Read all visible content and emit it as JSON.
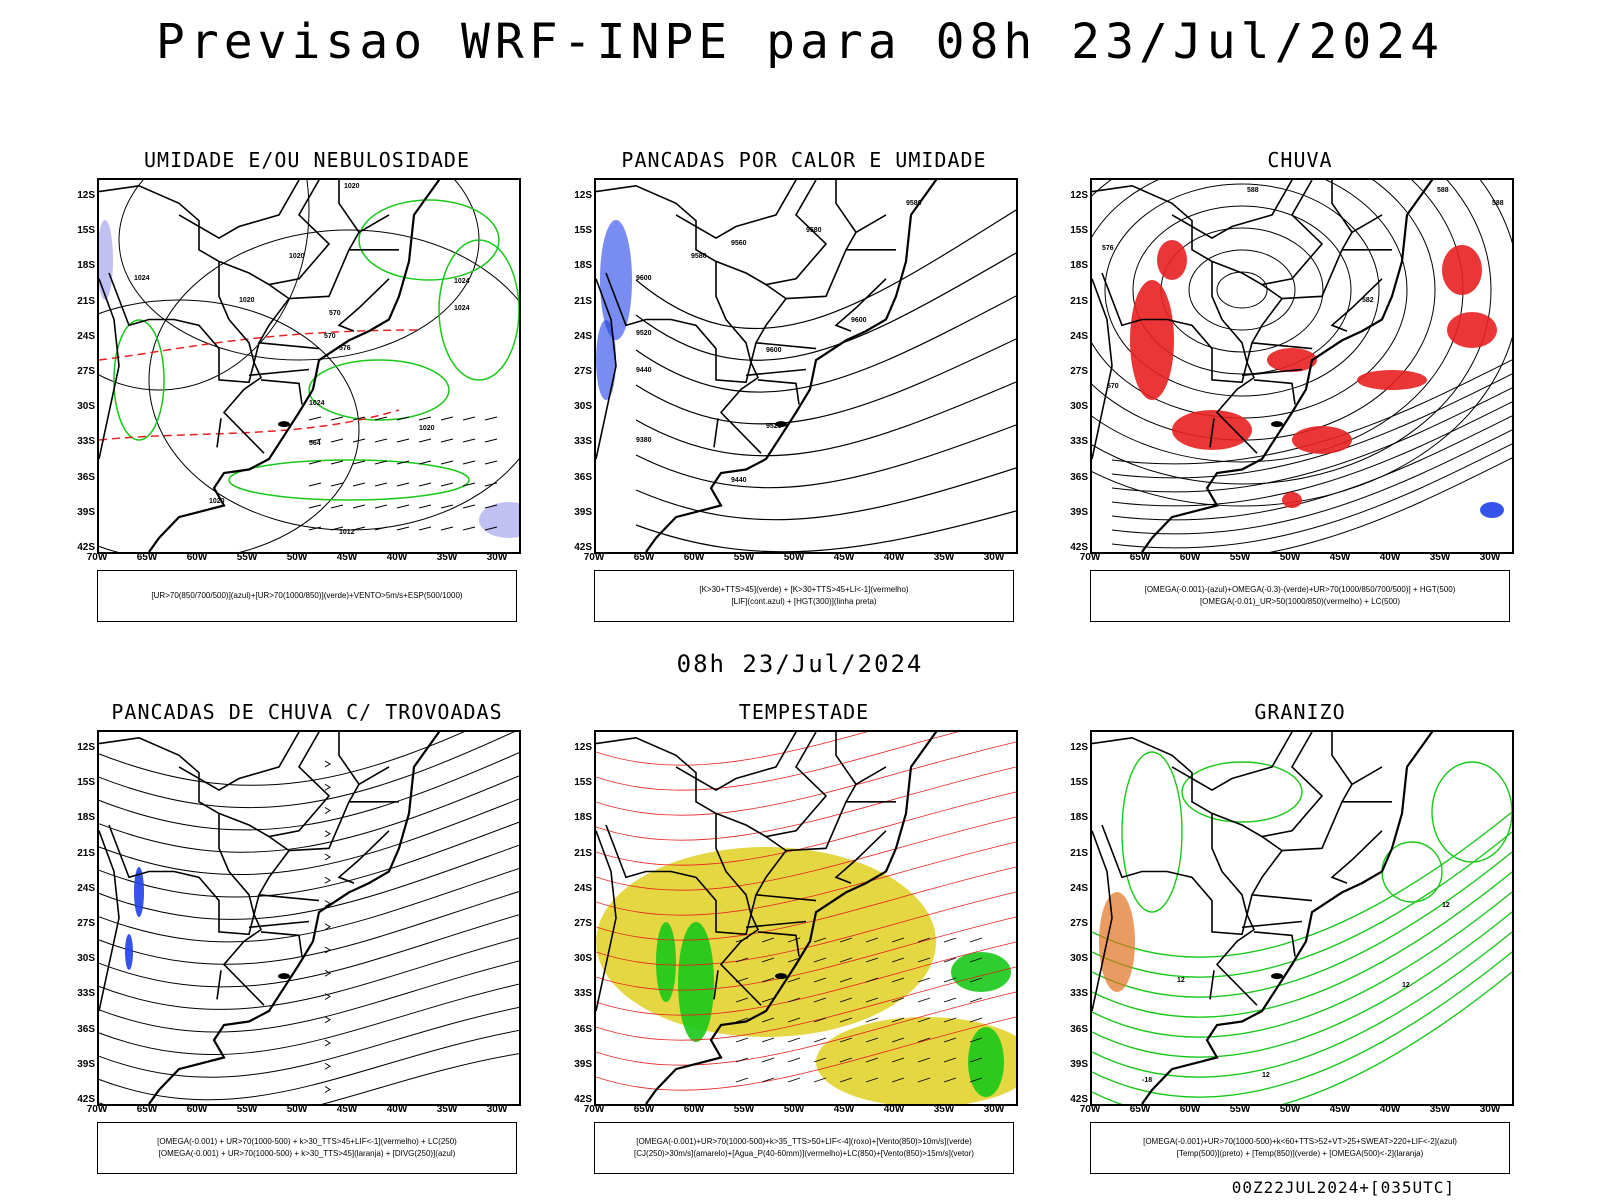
{
  "title": "Previsao WRF-INPE  para 08h 23/Jul/2024",
  "mid_title": "08h 23/Jul/2024",
  "footer": "00Z22JUL2024+[035UTC]",
  "lat_labels": [
    "12S",
    "15S",
    "18S",
    "21S",
    "24S",
    "27S",
    "30S",
    "33S",
    "36S",
    "39S",
    "42S"
  ],
  "lon_labels": [
    "70W",
    "65W",
    "60W",
    "55W",
    "50W",
    "45W",
    "40W",
    "35W",
    "30W"
  ],
  "panels": [
    {
      "id": "umidade",
      "title": "UMIDADE E/OU NEBULOSIDADE",
      "legend": [
        "[UR>70(850/700/500)](azul)+[UR>70(1000/850)](verde)+VENTO>5m/s+ESP(500/1000)"
      ],
      "contour_labels": [
        "1020",
        "1020",
        "1024",
        "1024",
        "1024",
        "1020",
        "1024",
        "1020",
        "1020",
        "1012",
        "570",
        "570",
        "576",
        "564"
      ]
    },
    {
      "id": "pancadas-calor",
      "title": "PANCADAS POR CALOR E UMIDADE",
      "legend": [
        "[K>30+TTS>45](verde) + [K>30+TTS>45+LI<-1](vermelho)",
        "[LIF](cont.azul) + [HGT(300)](linha preta)"
      ],
      "contour_labels": [
        "9580",
        "9560",
        "9580",
        "9580",
        "9600",
        "9520",
        "9440",
        "9600",
        "9600",
        "9520",
        "9380",
        "9440"
      ]
    },
    {
      "id": "chuva",
      "title": "CHUVA",
      "legend": [
        "[OMEGA(-0.001)-(azul)+OMEGA(-0.3)-(verde)+UR>70(1000/850/700/500)] + HGT(500)",
        "[OMEGA(-0.01)_UR>50(1000/850)(vermelho) + LC(500)"
      ],
      "contour_labels": [
        "588",
        "588",
        "588",
        "582",
        "576",
        "570"
      ]
    },
    {
      "id": "pancadas-trovoadas",
      "title": "PANCADAS DE CHUVA C/ TROVOADAS",
      "legend": [
        "[OMEGA(-0.001) + UR>70(1000-500) + k>30_TTS>45+LIF<-1](vermelho) + LC(250)",
        "[OMEGA(-0.001) + UR>70(1000-500) + k>30_TTS>45](laranja) + [DIVG(250)](azul)"
      ],
      "contour_labels": []
    },
    {
      "id": "tempestade",
      "title": "TEMPESTADE",
      "legend": [
        "[OMEGA(-0.001)+UR>70(1000-500)+k>35_TTS>50+LIF<-4](roxo)+[Vento(850)>10m/s](verde)",
        "[CJ(250)>30m/s](amarelo)+[Agua_P(40-60mm)](vermelho)+LC(850)+[Vento(850)>15m/s](vetor)"
      ],
      "contour_labels": []
    },
    {
      "id": "granizo",
      "title": "GRANIZO",
      "legend": [
        "[OMEGA(-0.001)+UR>70(1000-500)+k<60+TTS>52+VT>25+SWEAT>220+LIF<-2](azul)",
        "[Temp(500)](preto) + [Temp(850)](verde) + [OMEGA(500)<-2](laranja)"
      ],
      "contour_labels": [
        "12",
        "12",
        "12",
        "12",
        "-18"
      ]
    }
  ],
  "colors": {
    "coast": "#000000",
    "red": "#e82020",
    "green": "#18c818",
    "blue": "#2040e8",
    "yellow": "#e0d020",
    "lavender": "#b0b0f0",
    "orange": "#e07020"
  }
}
